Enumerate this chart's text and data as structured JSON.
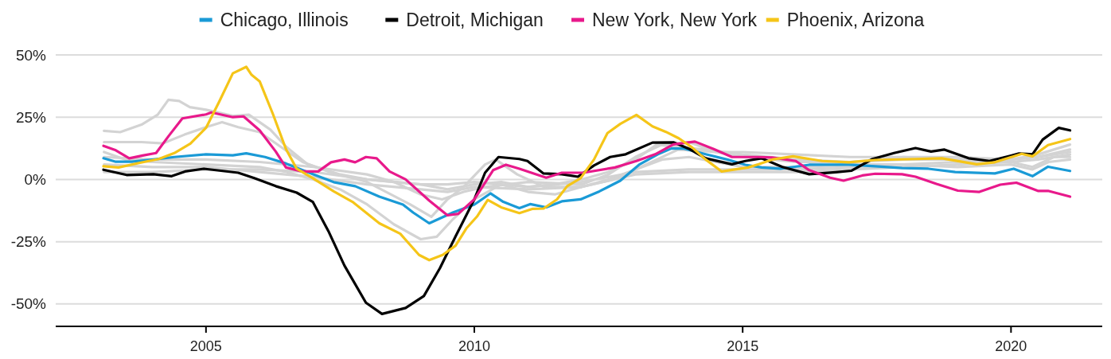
{
  "chart_data": {
    "type": "line",
    "legend": "top",
    "grid": "y",
    "xlim": [
      2002.2,
      2021.7
    ],
    "xticks": [
      2005,
      2010,
      2015,
      2020
    ],
    "ylim": [
      -59,
      50
    ],
    "yticks": [
      {
        "value": -50,
        "label": "-50%"
      },
      {
        "value": -25,
        "label": "-25%"
      },
      {
        "value": 0,
        "label": "0%"
      },
      {
        "value": 25,
        "label": "25%"
      },
      {
        "value": 50,
        "label": "50%"
      }
    ],
    "series": [
      {
        "color": "#d3d3d3",
        "x": [
          2003.1,
          2003.4,
          2003.8,
          2004.1,
          2004.3,
          2004.5,
          2004.7,
          2005.0,
          2005.5,
          2005.8,
          2006.2,
          2006.5,
          2006.9,
          2007.5,
          2008,
          2008.5,
          2009,
          2009.5,
          2010,
          2010.5,
          2011,
          2011.5,
          2012,
          2012.5,
          2013,
          2013.4,
          2013.8,
          2014.3,
          2015,
          2016,
          2017,
          2018,
          2019,
          2020,
          2020.5,
          2021.1
        ],
        "values": [
          19.5,
          19,
          22,
          26,
          32,
          31.5,
          29,
          28,
          25.5,
          26,
          20,
          13,
          6,
          2,
          0,
          -1,
          -2,
          -2,
          -1,
          -2,
          -3,
          -2,
          0,
          3,
          8,
          14,
          13,
          12,
          10,
          8,
          7,
          8,
          8,
          8,
          9,
          12
        ]
      },
      {
        "color": "#d3d3d3",
        "x": [
          2003.1,
          2003.8,
          2004.2,
          2004.6,
          2005.0,
          2005.3,
          2005.6,
          2006,
          2006.4,
          2006.8,
          2007.3,
          2008,
          2008.8,
          2009.2,
          2009.5,
          2009.8,
          2010.2,
          2010.4,
          2010.8,
          2011.3,
          2012,
          2012.6,
          2013.2,
          2013.8,
          2014.5,
          2015,
          2016,
          2017,
          2018,
          2019,
          2020,
          2020.5,
          2021.1
        ],
        "values": [
          15,
          15,
          14.5,
          18,
          21,
          23,
          21,
          19,
          13,
          7,
          3,
          -1,
          -10,
          -15,
          -8,
          -3,
          6,
          8,
          2,
          -3,
          -3,
          0,
          6,
          12,
          11,
          9,
          7,
          7,
          9,
          8,
          7,
          8,
          10
        ]
      },
      {
        "color": "#d3d3d3",
        "x": [
          2003.1,
          2003.5,
          2004,
          2005,
          2006,
          2006.5,
          2007,
          2007.5,
          2008,
          2008.5,
          2009.0,
          2009.3,
          2009.6,
          2010,
          2010.5,
          2011,
          2011.5,
          2012,
          2012.5,
          2013,
          2013.5,
          2014,
          2014.5,
          2015,
          2016,
          2017,
          2018,
          2019,
          2020,
          2020.4,
          2020.7,
          2021.1
        ],
        "values": [
          11,
          8,
          7,
          6,
          5,
          3,
          0,
          -4,
          -10,
          -18,
          -24,
          -23,
          -16,
          -8,
          -2,
          -5,
          -6,
          -3,
          0,
          4,
          8,
          9,
          7,
          5,
          5,
          6,
          6,
          5,
          6,
          4,
          7,
          8
        ]
      },
      {
        "color": "#d3d3d3",
        "x": [
          2003.1,
          2004,
          2005,
          2006,
          2007,
          2008,
          2009,
          2009.5,
          2010,
          2011,
          2012,
          2013,
          2014,
          2015,
          2016,
          2017,
          2018,
          2019,
          2020,
          2020.4,
          2020.8,
          2021.1
        ],
        "values": [
          6,
          5,
          5,
          3,
          1,
          -2,
          -4,
          -5,
          -3,
          -4,
          -3,
          2,
          3,
          3,
          3,
          4,
          5,
          6,
          7,
          5,
          9,
          9
        ]
      },
      {
        "color": "#d3d3d3",
        "x": [
          2003.1,
          2004,
          2005,
          2006,
          2007,
          2008,
          2009,
          2009.5,
          2010,
          2010.5,
          2011,
          2012,
          2013,
          2014,
          2015,
          2016,
          2017,
          2018,
          2019,
          2020,
          2020.5,
          2021.1
        ],
        "values": [
          3,
          3,
          4,
          4,
          3,
          0,
          -2,
          -4,
          -2,
          -1,
          -3,
          -1,
          3,
          4,
          4,
          4,
          5,
          6,
          7,
          8,
          9,
          11
        ]
      },
      {
        "color": "#d3d3d3",
        "x": [
          2003.1,
          2004,
          2005,
          2006,
          2007,
          2008,
          2008.5,
          2009,
          2009.4,
          2009.8,
          2010.2,
          2011,
          2012,
          2012.5,
          2013,
          2013.5,
          2014,
          2014.5,
          2015,
          2016,
          2017,
          2018,
          2019,
          2020,
          2020.5,
          2021.1
        ],
        "values": [
          9,
          8,
          8,
          7,
          5,
          2,
          -1,
          -6,
          -8,
          -5,
          -3,
          -1,
          -2,
          2,
          9,
          14,
          15,
          11,
          11,
          10,
          9,
          9,
          9,
          8,
          10,
          14
        ]
      },
      {
        "name": "Chicago, Illinois",
        "color": "#1a9ad6",
        "x": [
          2003.09,
          2003.32,
          2003.62,
          2004.02,
          2004.41,
          2005.0,
          2005.5,
          2005.75,
          2006.1,
          2006.49,
          2006.99,
          2007.38,
          2007.78,
          2008.23,
          2008.67,
          2008.86,
          2009.16,
          2009.6,
          2010.0,
          2010.3,
          2010.54,
          2010.84,
          2011.04,
          2011.34,
          2011.63,
          2011.98,
          2012.33,
          2012.72,
          2013.07,
          2013.42,
          2013.67,
          2013.91,
          2014.31,
          2014.71,
          2015.05,
          2015.35,
          2015.7,
          2016.24,
          2016.98,
          2017.47,
          2017.97,
          2018.46,
          2018.96,
          2019.7,
          2020.05,
          2020.4,
          2020.69,
          2021.1
        ],
        "values": [
          8.5,
          7.1,
          7.1,
          8,
          9,
          10.1,
          9.7,
          10.5,
          9,
          6.4,
          2.1,
          -1.1,
          -2.7,
          -6.9,
          -10.1,
          -13.3,
          -17.6,
          -13.3,
          -10.1,
          -5.6,
          -9,
          -11.5,
          -9.9,
          -11.2,
          -8.8,
          -8,
          -4.8,
          -0.5,
          5.9,
          10.1,
          12.4,
          12.4,
          10.1,
          8,
          5.9,
          4.8,
          4.3,
          5.9,
          5.9,
          5.3,
          4.6,
          4.3,
          3,
          2.4,
          4.3,
          1.3,
          5.1,
          3.4
        ]
      },
      {
        "name": "Detroit, Michigan",
        "color": "#000000",
        "x": [
          2003.09,
          2003.52,
          2004.02,
          2004.36,
          2004.61,
          2004.96,
          2005.6,
          2005.9,
          2006.3,
          2006.69,
          2006.99,
          2007.28,
          2007.58,
          2007.98,
          2008.28,
          2008.72,
          2009.06,
          2009.36,
          2009.65,
          2010.0,
          2010.2,
          2010.45,
          2010.84,
          2010.99,
          2011.29,
          2011.63,
          2011.93,
          2012.23,
          2012.53,
          2012.82,
          2013.32,
          2013.71,
          2014.01,
          2014.31,
          2014.8,
          2015.05,
          2015.35,
          2015.74,
          2016.24,
          2016.73,
          2017.03,
          2017.42,
          2017.82,
          2018.22,
          2018.51,
          2018.76,
          2019.21,
          2019.6,
          2020.15,
          2020.4,
          2020.59,
          2020.89,
          2021.1
        ],
        "values": [
          3.9,
          1.8,
          2.1,
          1.3,
          3.2,
          4.3,
          2.7,
          0.5,
          -2.7,
          -5.3,
          -9,
          -20.7,
          -34.6,
          -49.5,
          -54,
          -51.6,
          -46.8,
          -35.6,
          -22.9,
          -8,
          2.7,
          9,
          8.2,
          7.4,
          2.4,
          2.1,
          1.1,
          5.6,
          9,
          10.1,
          14.8,
          14.9,
          12.2,
          8.5,
          6.1,
          7.4,
          8.5,
          5,
          2.1,
          2.9,
          3.5,
          8.2,
          10.6,
          12.6,
          11.2,
          12,
          8.5,
          7.4,
          10.4,
          10.1,
          16,
          20.7,
          19.7
        ]
      },
      {
        "name": "New York, New York",
        "color": "#e8198b",
        "x": [
          2003.09,
          2003.32,
          2003.57,
          2003.82,
          2004.07,
          2004.31,
          2004.56,
          2005.0,
          2005.1,
          2005.5,
          2005.7,
          2006.0,
          2006.3,
          2006.49,
          2006.79,
          2007.09,
          2007.33,
          2007.58,
          2007.78,
          2007.98,
          2008.18,
          2008.42,
          2008.72,
          2009.16,
          2009.5,
          2009.7,
          2010.0,
          2010.35,
          2010.59,
          2010.84,
          2011.34,
          2011.63,
          2012.03,
          2012.62,
          2013.02,
          2013.37,
          2013.71,
          2014.11,
          2014.46,
          2014.8,
          2015.3,
          2015.55,
          2015.99,
          2016.24,
          2016.63,
          2016.88,
          2017.23,
          2017.47,
          2017.97,
          2018.22,
          2018.61,
          2019.01,
          2019.41,
          2019.8,
          2020.1,
          2020.5,
          2020.69,
          2021.1
        ],
        "values": [
          13.5,
          11.7,
          8.5,
          9.6,
          10.6,
          17.6,
          24.5,
          26.1,
          26.9,
          25,
          25.3,
          19.7,
          11.2,
          4.8,
          3.2,
          3.2,
          6.9,
          8,
          6.9,
          9,
          8.5,
          3.2,
          0,
          -8.5,
          -14.4,
          -13.8,
          -8,
          3.7,
          5.9,
          4.3,
          0.7,
          2.7,
          2.7,
          4.8,
          7.4,
          10.1,
          14.1,
          15.2,
          12.2,
          9,
          9,
          8.8,
          7.4,
          3.7,
          0.7,
          -0.5,
          1.6,
          2.3,
          2.1,
          1.1,
          -1.8,
          -4.5,
          -5,
          -2.1,
          -1.3,
          -4.6,
          -4.6,
          -6.9
        ]
      },
      {
        "name": "Phoenix, Arizona",
        "color": "#f5c518",
        "x": [
          2003.09,
          2003.37,
          2003.77,
          2004.12,
          2004.41,
          2004.71,
          2005.0,
          2005.25,
          2005.5,
          2005.75,
          2005.85,
          2006.0,
          2006.25,
          2006.49,
          2006.69,
          2006.99,
          2007.38,
          2007.73,
          2008.23,
          2008.62,
          2008.97,
          2009.16,
          2009.41,
          2009.65,
          2009.85,
          2010.05,
          2010.25,
          2010.5,
          2010.84,
          2011.09,
          2011.29,
          2011.54,
          2011.73,
          2011.98,
          2012.23,
          2012.48,
          2012.72,
          2013.02,
          2013.32,
          2013.57,
          2013.81,
          2014.06,
          2014.31,
          2014.61,
          2015.1,
          2015.3,
          2015.55,
          2015.94,
          2016.48,
          2016.98,
          2017.47,
          2018.22,
          2018.71,
          2019.36,
          2019.7,
          2020.2,
          2020.4,
          2020.69,
          2021.1
        ],
        "values": [
          5.3,
          4.8,
          6.7,
          8.2,
          10.6,
          14.4,
          20.7,
          31.4,
          42.6,
          45.2,
          42,
          39.4,
          26.1,
          12.2,
          4.3,
          0.5,
          -4.8,
          -9,
          -17.6,
          -21.8,
          -30.3,
          -32.4,
          -30.3,
          -26.6,
          -19.7,
          -14.9,
          -8.2,
          -11.2,
          -13.5,
          -11.8,
          -11.7,
          -8,
          -2.7,
          0.5,
          8,
          18.6,
          22.3,
          25.9,
          21.3,
          19.1,
          16.5,
          12.8,
          8,
          3.2,
          4.8,
          6.1,
          8,
          9.3,
          7.4,
          6.9,
          7.8,
          8.2,
          8.5,
          6.1,
          6.9,
          10.3,
          9.3,
          13.8,
          16.2
        ]
      }
    ]
  }
}
